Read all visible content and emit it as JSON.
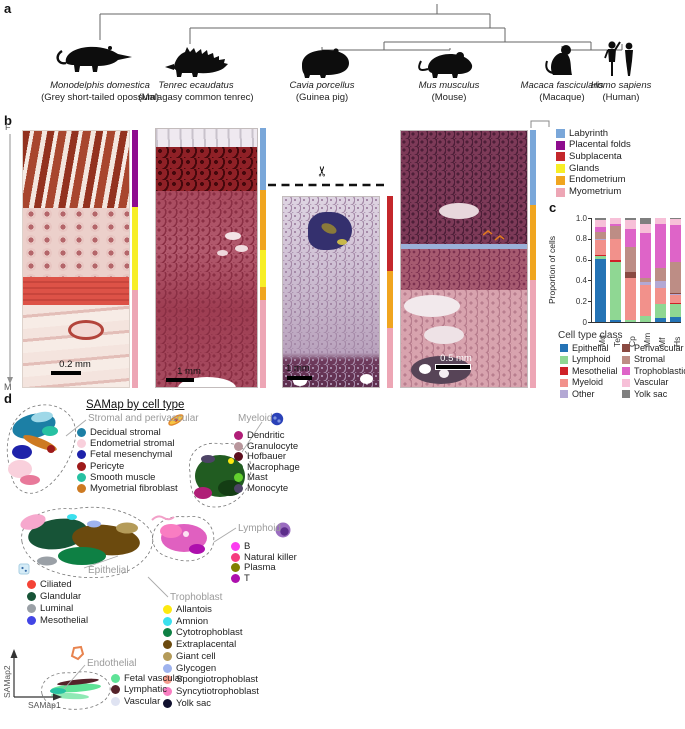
{
  "panels": {
    "a": "a",
    "b": "b",
    "c": "c",
    "d": "d"
  },
  "panel_a": {
    "species": [
      {
        "latin": "Monodelphis domestica",
        "common": "(Grey short-tailed opossum)"
      },
      {
        "latin": "Tenrec ecaudatus",
        "common": "(Malagasy common tenrec)"
      },
      {
        "latin": "Cavia porcellus",
        "common": "(Guinea pig)"
      },
      {
        "latin": "Mus musculus",
        "common": "(Mouse)"
      },
      {
        "latin": "Macaca fascicularis",
        "common": "(Macaque)"
      },
      {
        "latin": "Homo sapiens",
        "common": "(Human)"
      }
    ]
  },
  "panel_b": {
    "axis_top": "F",
    "axis_bottom": "M",
    "legend": [
      {
        "label": "Labyrinth",
        "color": "#7aa7d9"
      },
      {
        "label": "Placental folds",
        "color": "#8e0c8e"
      },
      {
        "label": "Subplacenta",
        "color": "#c4272b"
      },
      {
        "label": "Glands",
        "color": "#f7ee26"
      },
      {
        "label": "Endometrium",
        "color": "#f0a51f"
      },
      {
        "label": "Myometrium",
        "color": "#eda6b5"
      }
    ],
    "images": [
      {
        "name": "opossum-histology",
        "scale_bar": "0.2 mm",
        "segments": [
          {
            "class": "Placental folds",
            "frac": 0.3
          },
          {
            "class": "Glands",
            "frac": 0.32
          },
          {
            "class": "Myometrium",
            "frac": 0.38
          }
        ]
      },
      {
        "name": "tenrec-histology",
        "scale_bar": "1 mm",
        "segments": [
          {
            "class": "Labyrinth",
            "frac": 0.24
          },
          {
            "class": "Endometrium",
            "frac": 0.23
          },
          {
            "class": "Glands",
            "frac": 0.14
          },
          {
            "class": "Endometrium",
            "frac": 0.05
          },
          {
            "class": "Myometrium",
            "frac": 0.34
          }
        ]
      },
      {
        "name": "guinea-pig-histology",
        "scale_bar": "1 mm",
        "segments": [
          {
            "class": "Subplacenta",
            "frac": 0.39
          },
          {
            "class": "Endometrium",
            "frac": 0.3
          },
          {
            "class": "Myometrium",
            "frac": 0.31
          }
        ]
      },
      {
        "name": "mouse-histology",
        "scale_bar": "0.5 mm",
        "segments": [
          {
            "class": "Labyrinth",
            "frac": 0.29
          },
          {
            "class": "Endometrium",
            "frac": 0.29
          },
          {
            "class": "Myometrium",
            "frac": 0.42
          }
        ]
      }
    ]
  },
  "chart_data": {
    "type": "bar",
    "stacked": true,
    "title": "",
    "xlabel": "",
    "ylabel": "Proportion of cells",
    "categories": [
      "Md",
      "Te",
      "Cp",
      "Mm",
      "Mf",
      "Hs"
    ],
    "ylim": [
      0,
      1.0
    ],
    "yticks": [
      "1.0",
      "0.8",
      "0.6",
      "0.4",
      "0.2",
      "0"
    ],
    "legend_title": "Cell type class",
    "legend_position": "below",
    "grid": false,
    "series": [
      {
        "name": "Epithelial",
        "color": "#2473b5",
        "values": [
          0.61,
          0.02,
          0,
          0,
          0.04,
          0.05
        ]
      },
      {
        "name": "Lymphoid",
        "color": "#8fd793",
        "values": [
          0.02,
          0.56,
          0.02,
          0.06,
          0.13,
          0.12
        ]
      },
      {
        "name": "Mesothelial",
        "color": "#cf2128",
        "values": [
          0.01,
          0.02,
          0,
          0,
          0,
          0.01
        ]
      },
      {
        "name": "Myeloid",
        "color": "#f2918b",
        "values": [
          0.15,
          0.2,
          0.4,
          0.3,
          0.16,
          0.08
        ]
      },
      {
        "name": "Other",
        "color": "#b3a8d4",
        "values": [
          0.01,
          0,
          0,
          0.02,
          0.06,
          0.01
        ]
      },
      {
        "name": "Perivascular",
        "color": "#8a4a42",
        "values": [
          0,
          0,
          0.06,
          0,
          0,
          0.01
        ]
      },
      {
        "name": "Stromal",
        "color": "#bd8d85",
        "values": [
          0.07,
          0.12,
          0.24,
          0.04,
          0.13,
          0.3
        ]
      },
      {
        "name": "Trophoblastic",
        "color": "#de64c8",
        "values": [
          0.04,
          0.02,
          0.17,
          0.44,
          0.42,
          0.35
        ]
      },
      {
        "name": "Vascular",
        "color": "#f7c0d8",
        "values": [
          0.07,
          0.06,
          0.09,
          0.08,
          0.06,
          0.06
        ]
      },
      {
        "name": "Yolk sac",
        "color": "#7f7f7f",
        "values": [
          0.02,
          0,
          0.02,
          0.06,
          0,
          0.01
        ]
      }
    ]
  },
  "panel_d": {
    "title": "SAMap by cell type",
    "xlabel": "SAMap1",
    "ylabel": "SAMap2",
    "groups": [
      {
        "key": "stromal",
        "label": "Stromal and perivascular",
        "items": [
          {
            "label": "Decidual stromal",
            "color": "#1c7fa5"
          },
          {
            "label": "Endometrial stromal",
            "color": "#f9d0dc"
          },
          {
            "label": "Fetal mesenchymal",
            "color": "#1e22aa"
          },
          {
            "label": "Pericyte",
            "color": "#9e1a1a"
          },
          {
            "label": "Smooth muscle",
            "color": "#27c1a2"
          },
          {
            "label": "Myometrial fibroblast",
            "color": "#cd7a22"
          }
        ]
      },
      {
        "key": "myeloid",
        "label": "Myeloid",
        "items": [
          {
            "label": "Dendritic",
            "color": "#b01e77"
          },
          {
            "label": "Granulocyte",
            "color": "#b8969c"
          },
          {
            "label": "Hofbauer",
            "color": "#5c0f1e"
          },
          {
            "label": "Macrophage",
            "color": "#215c21"
          },
          {
            "label": "Mast",
            "color": "#63d02e"
          },
          {
            "label": "Monocyte",
            "color": "#4d4466"
          }
        ]
      },
      {
        "key": "lymphoid",
        "label": "Lymphoid",
        "items": [
          {
            "label": "B",
            "color": "#fb3df0"
          },
          {
            "label": "Natural killer",
            "color": "#f53d7f"
          },
          {
            "label": "Plasma",
            "color": "#808000"
          },
          {
            "label": "T",
            "color": "#ad0fad"
          }
        ]
      },
      {
        "key": "epithelial",
        "label": "Epithelial",
        "items": [
          {
            "label": "Ciliated",
            "color": "#f44336"
          },
          {
            "label": "Glandular",
            "color": "#175437"
          },
          {
            "label": "Luminal",
            "color": "#9aa0a6"
          },
          {
            "label": "Mesothelial",
            "color": "#4245e5"
          }
        ]
      },
      {
        "key": "trophoblast",
        "label": "Trophoblast",
        "items": [
          {
            "label": "Allantois",
            "color": "#fde910"
          },
          {
            "label": "Amnion",
            "color": "#3ae0ee"
          },
          {
            "label": "Cytotrophoblast",
            "color": "#0e8044"
          },
          {
            "label": "Extraplacental",
            "color": "#6b4a0e"
          },
          {
            "label": "Giant cell",
            "color": "#b49b59"
          },
          {
            "label": "Glycogen",
            "color": "#9fb3ee"
          },
          {
            "label": "Spongiotrophoblast",
            "color": "#f59d8e"
          },
          {
            "label": "Syncytiotrophoblast",
            "color": "#f97dc2"
          },
          {
            "label": "Yolk sac",
            "color": "#10102e"
          }
        ]
      },
      {
        "key": "endothelial",
        "label": "Endothelial",
        "items": [
          {
            "label": "Fetal vascular",
            "color": "#5fe397"
          },
          {
            "label": "Lymphatic",
            "color": "#55232a"
          },
          {
            "label": "Vascular",
            "color": "#dfe3f2"
          }
        ]
      }
    ]
  }
}
